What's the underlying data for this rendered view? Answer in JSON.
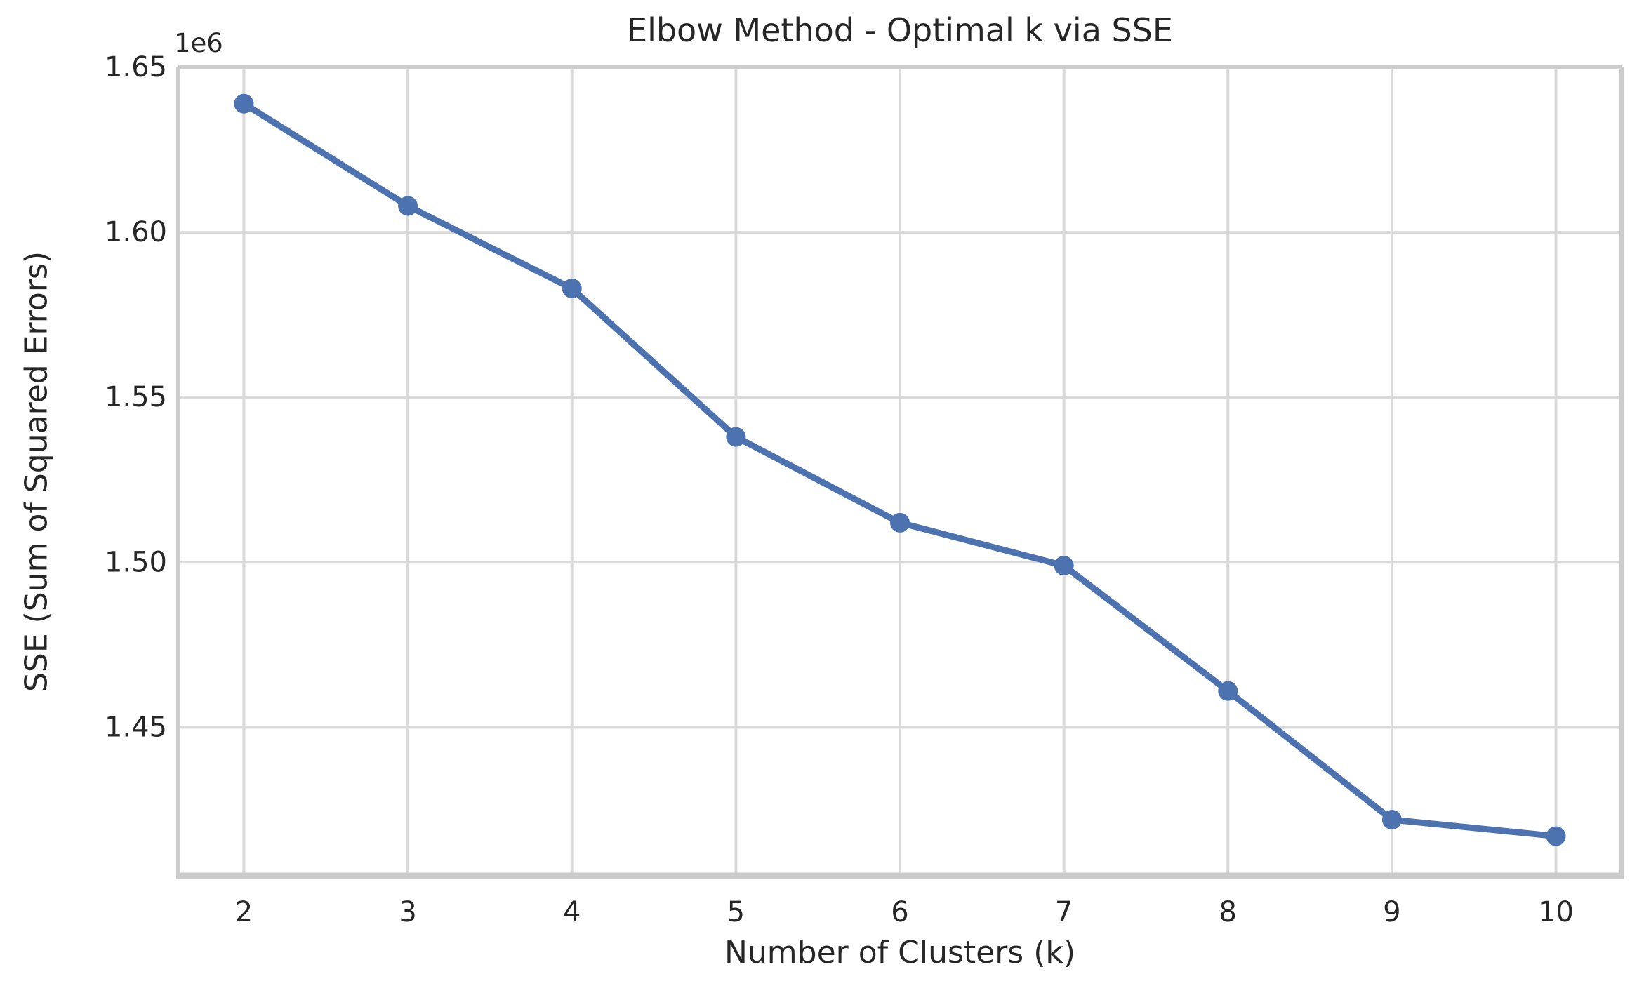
{
  "figure": {
    "title": "Elbow Method - Optimal k via SSE",
    "xlabel": "Number of Clusters (k)",
    "ylabel": "SSE (Sum of Squared Errors)",
    "y_offset_text": "1e6"
  },
  "chart_data": {
    "type": "line",
    "title": "Elbow Method - Optimal k via SSE",
    "xlabel": "Number of Clusters (k)",
    "ylabel": "SSE (Sum of Squared Errors)",
    "series": [
      {
        "name": "SSE",
        "x": [
          2,
          3,
          4,
          5,
          6,
          7,
          8,
          9,
          10
        ],
        "y": [
          1639000,
          1608000,
          1583000,
          1538000,
          1512000,
          1499000,
          1461000,
          1422000,
          1417000
        ]
      }
    ],
    "xlim": [
      1.6,
      10.4
    ],
    "ylim": [
      1405000,
      1650000
    ],
    "xticks": [
      2,
      3,
      4,
      5,
      6,
      7,
      8,
      9,
      10
    ],
    "xtick_labels": [
      "2",
      "3",
      "4",
      "5",
      "6",
      "7",
      "8",
      "9",
      "10"
    ],
    "yticks": [
      1450000,
      1500000,
      1550000,
      1600000,
      1650000
    ],
    "ytick_labels": [
      "1.45",
      "1.50",
      "1.55",
      "1.60",
      "1.65"
    ],
    "y_offset_multiplier": "1e6",
    "grid": true,
    "legend": false,
    "marker": "o",
    "colors": {
      "line": "#4C72B0",
      "marker": "#4C72B0",
      "grid": "#D9D9D9",
      "spine": "#CCCCCC",
      "text": "#262626",
      "background": "#FFFFFF"
    }
  }
}
